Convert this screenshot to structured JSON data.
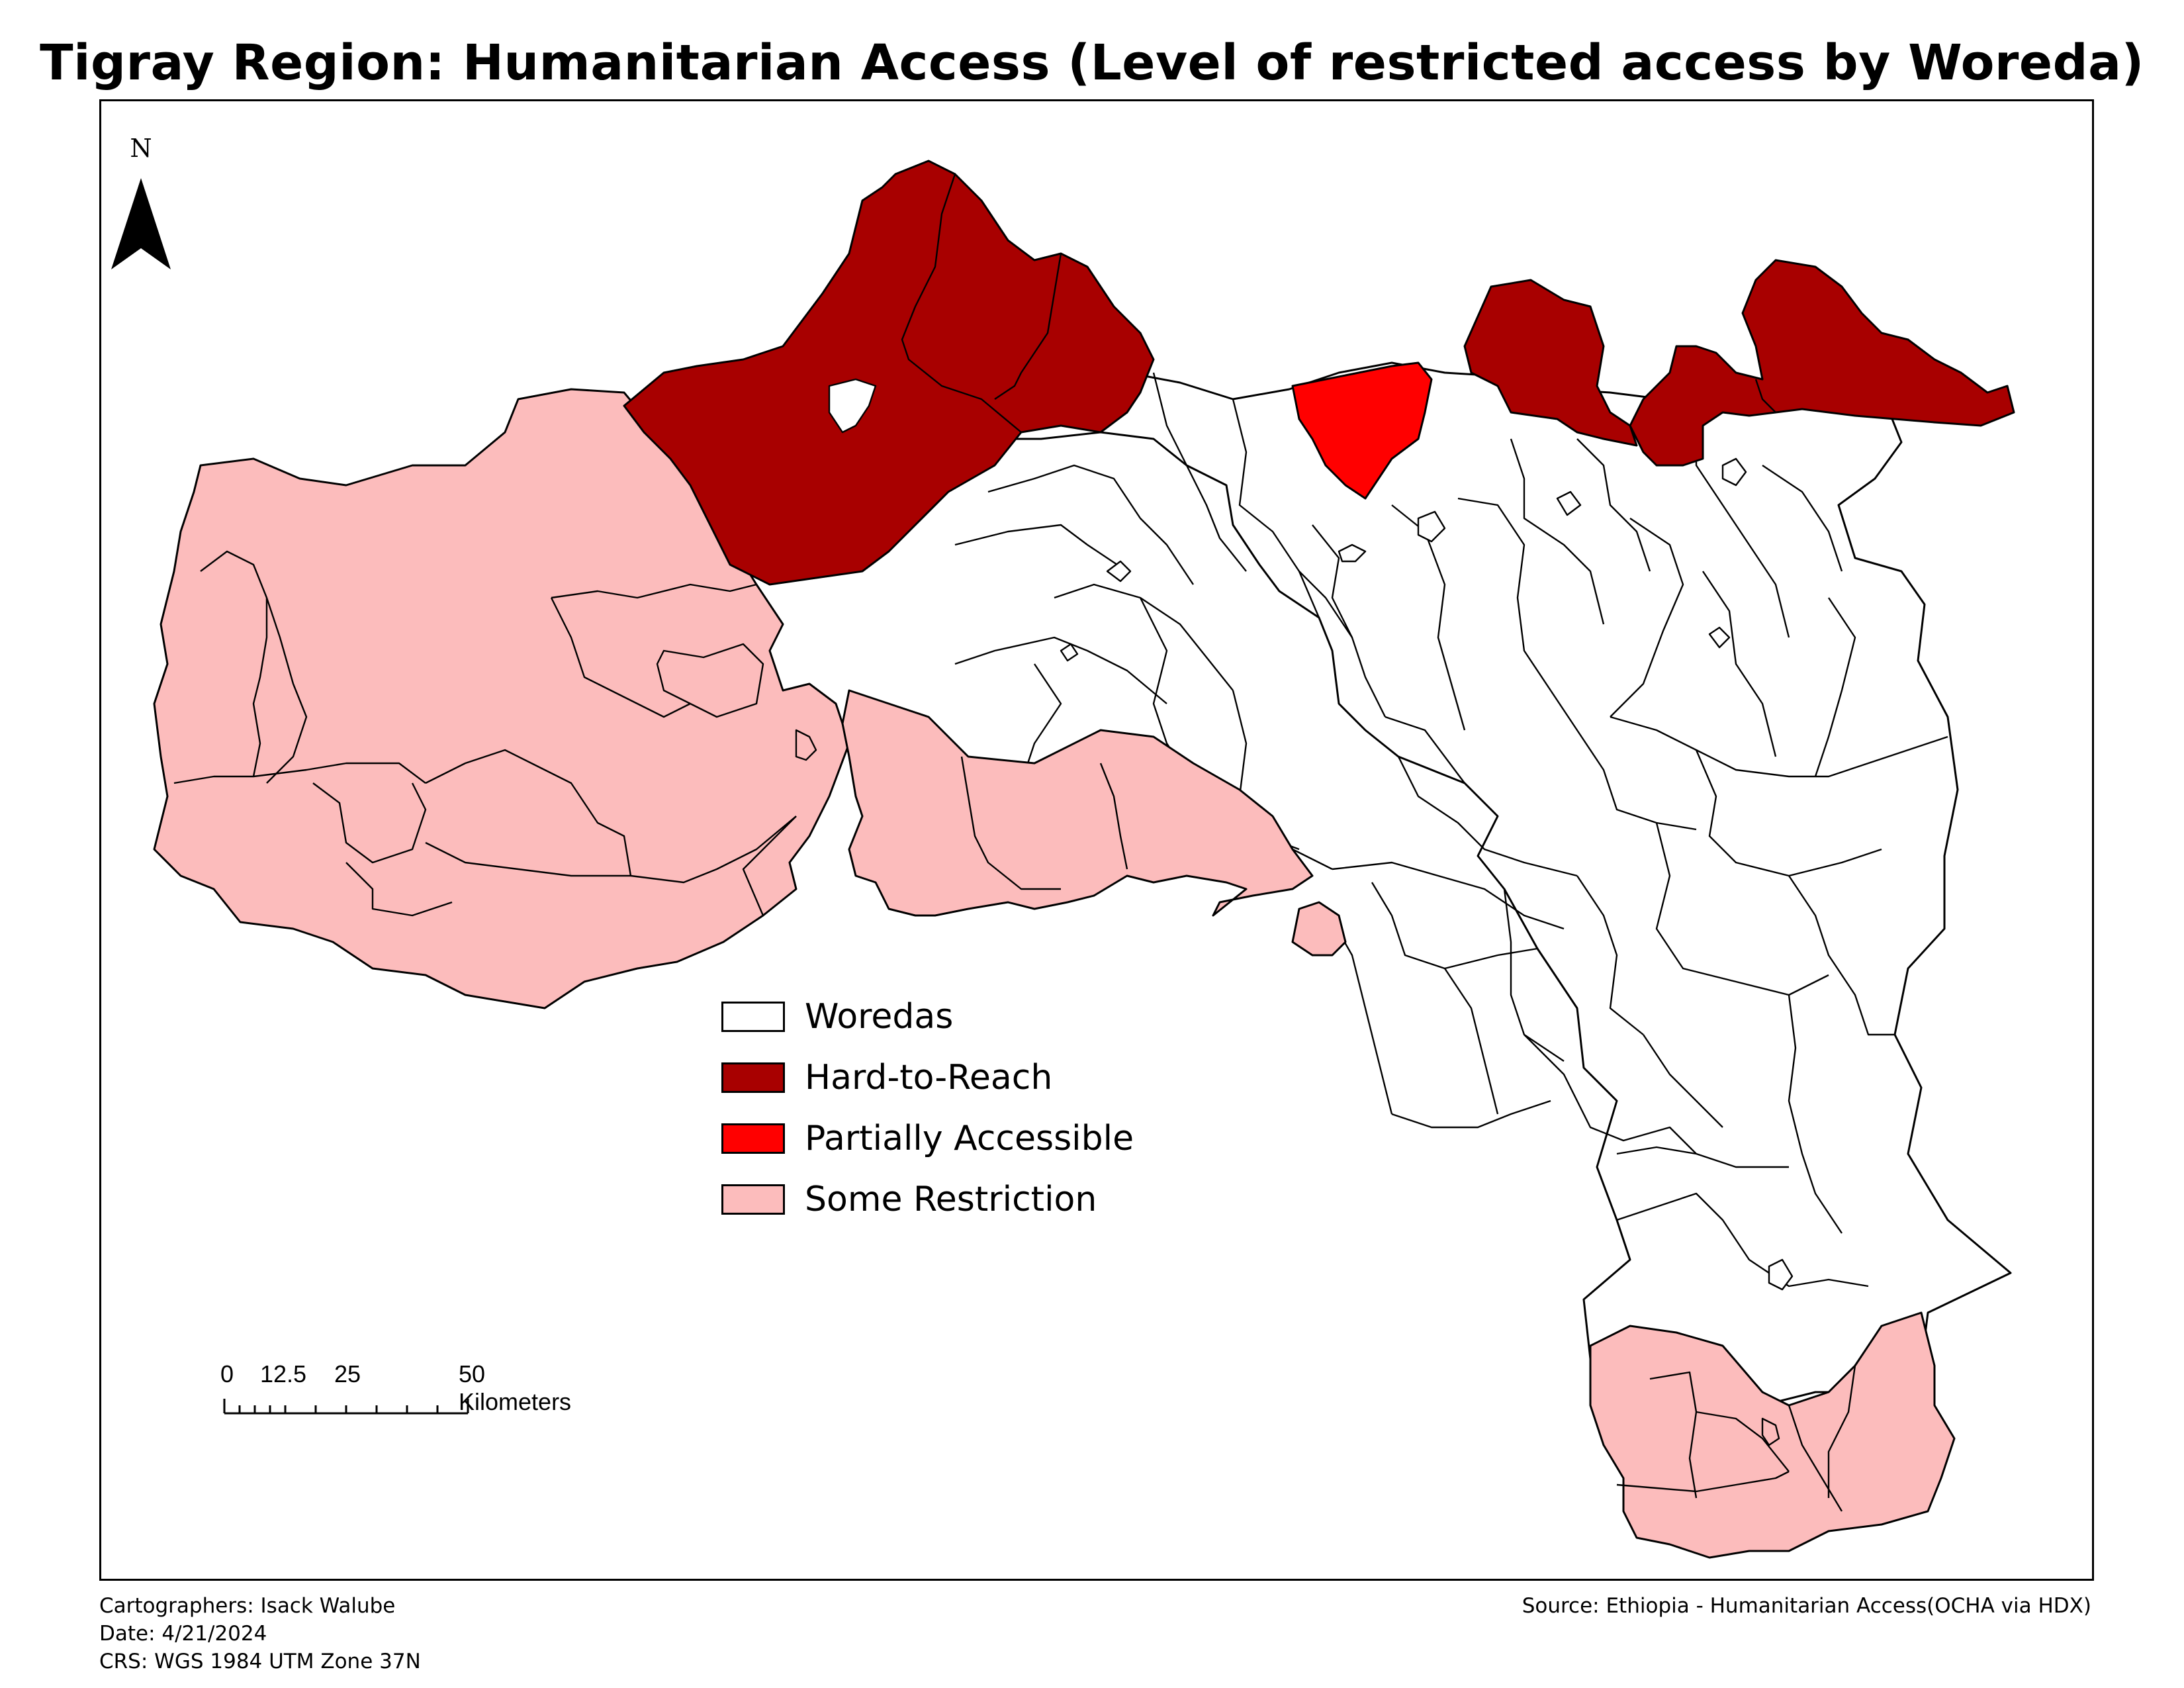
{
  "title": "Tigray Region: Humanitarian Access (Level of restricted access by Woreda)",
  "north_arrow": {
    "label": "N"
  },
  "legend": {
    "items": [
      {
        "label": "Woredas",
        "color": "#ffffff"
      },
      {
        "label": "Hard-to-Reach",
        "color": "#a80000"
      },
      {
        "label": "Partially Accessible",
        "color": "#ff0000"
      },
      {
        "label": "Some Restriction",
        "color": "#fcbcbc"
      }
    ]
  },
  "scale_bar": {
    "labels": [
      "0",
      "12.5",
      "25",
      "50 Kilometers"
    ],
    "values_km": [
      0,
      12.5,
      25,
      50
    ]
  },
  "credits": {
    "cartographers": "Cartographers: Isack Walube",
    "date": "Date: 4/21/2024",
    "crs": "CRS: WGS 1984 UTM Zone 37N",
    "source": "Source: Ethiopia - Humanitarian Access(OCHA via HDX)"
  },
  "colors": {
    "hard_to_reach": "#a80000",
    "partially_accessible": "#ff0000",
    "some_restriction": "#fcbcbc",
    "woredas": "#ffffff",
    "outline": "#000000"
  }
}
